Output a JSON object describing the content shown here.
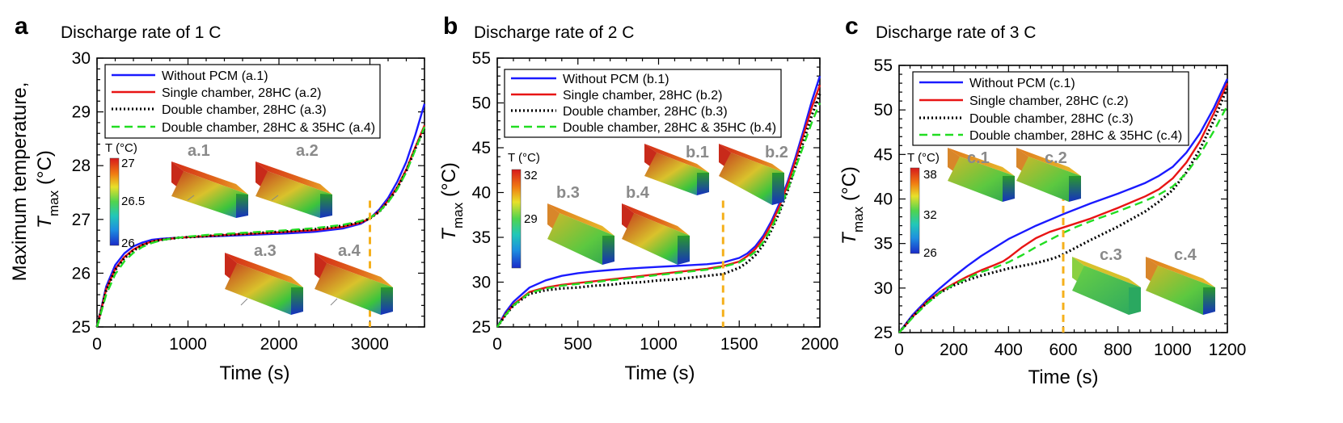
{
  "chart_data": [
    {
      "type": "line",
      "panel": "a",
      "title": "Discharge rate of 1 C",
      "xlabel": "Time (s)",
      "ylabel_text": "Maximum temperature,",
      "ylabel_symbol": "T",
      "ylabel_sub": "max",
      "ylabel_unit": "(°C)",
      "xlim": [
        0,
        3600
      ],
      "ylim": [
        25,
        30
      ],
      "xticks": [
        0,
        1000,
        2000,
        3000
      ],
      "xtick_labels": [
        "0",
        "1000",
        "2000",
        "3000"
      ],
      "yticks": [
        25,
        26,
        27,
        28,
        29,
        30
      ],
      "ytick_labels": [
        "25",
        "26",
        "27",
        "28",
        "29",
        "30"
      ],
      "marker_time": 3000,
      "series": [
        {
          "name": "Without PCM (a.1)",
          "color": "#1a1aff",
          "dash": "solid",
          "x": [
            0,
            100,
            200,
            300,
            400,
            500,
            600,
            700,
            800,
            900,
            1000,
            1200,
            1500,
            1800,
            2100,
            2400,
            2700,
            2900,
            3000,
            3100,
            3200,
            3300,
            3400,
            3500,
            3600
          ],
          "y": [
            25.0,
            25.75,
            26.15,
            26.37,
            26.5,
            26.57,
            26.62,
            26.64,
            26.65,
            26.66,
            26.67,
            26.68,
            26.7,
            26.72,
            26.74,
            26.77,
            26.83,
            26.92,
            27.02,
            27.18,
            27.4,
            27.7,
            28.07,
            28.58,
            29.15
          ]
        },
        {
          "name": "Single chamber, 28HC (a.2)",
          "color": "#e81414",
          "dash": "solid",
          "x": [
            0,
            100,
            200,
            300,
            400,
            500,
            600,
            700,
            800,
            900,
            1000,
            1200,
            1500,
            1800,
            2100,
            2400,
            2700,
            2900,
            3000,
            3100,
            3200,
            3300,
            3400,
            3500,
            3600
          ],
          "y": [
            25.0,
            25.7,
            26.08,
            26.3,
            26.44,
            26.53,
            26.59,
            26.62,
            26.64,
            26.66,
            26.67,
            26.69,
            26.72,
            26.74,
            26.77,
            26.8,
            26.86,
            26.94,
            27.02,
            27.15,
            27.35,
            27.6,
            27.93,
            28.35,
            28.75
          ]
        },
        {
          "name": "Double chamber, 28HC (a.3)",
          "color": "#000000",
          "dash": "dotted",
          "x": [
            0,
            100,
            200,
            300,
            400,
            500,
            600,
            700,
            800,
            900,
            1000,
            1200,
            1500,
            1800,
            2100,
            2400,
            2700,
            2900,
            3000,
            3100,
            3200,
            3300,
            3400,
            3500,
            3600
          ],
          "y": [
            25.0,
            25.68,
            26.06,
            26.28,
            26.42,
            26.52,
            26.58,
            26.62,
            26.64,
            26.66,
            26.67,
            26.69,
            26.72,
            26.75,
            26.78,
            26.82,
            26.88,
            26.95,
            27.02,
            27.14,
            27.33,
            27.58,
            27.9,
            28.32,
            28.7
          ]
        },
        {
          "name": "Double chamber, 28HC & 35HC (a.4)",
          "color": "#22dd22",
          "dash": "dashed",
          "x": [
            0,
            100,
            200,
            300,
            400,
            500,
            600,
            700,
            800,
            900,
            1000,
            1200,
            1500,
            1800,
            2100,
            2400,
            2700,
            2900,
            3000,
            3100,
            3200,
            3300,
            3400,
            3500,
            3600
          ],
          "y": [
            25.0,
            25.6,
            25.98,
            26.22,
            26.38,
            26.49,
            26.56,
            26.61,
            26.64,
            26.66,
            26.68,
            26.71,
            26.74,
            26.77,
            26.8,
            26.84,
            26.9,
            26.97,
            27.03,
            27.14,
            27.32,
            27.56,
            27.88,
            28.3,
            28.72
          ]
        }
      ],
      "colorbar": {
        "label": "T (°C)",
        "ticks": [
          "27",
          "26.5",
          "26"
        ]
      },
      "insets": [
        "a.1",
        "a.2",
        "a.3",
        "a.4"
      ]
    },
    {
      "type": "line",
      "panel": "b",
      "title": "Discharge rate of 2 C",
      "xlabel": "Time (s)",
      "ylabel_symbol": "T",
      "ylabel_sub": "max",
      "ylabel_unit": "(°C)",
      "xlim": [
        0,
        2000
      ],
      "ylim": [
        25,
        55
      ],
      "xticks": [
        0,
        500,
        1000,
        1500,
        2000
      ],
      "xtick_labels": [
        "0",
        "500",
        "1000",
        "1500",
        "2000"
      ],
      "yticks": [
        25,
        30,
        35,
        40,
        45,
        50,
        55
      ],
      "ytick_labels": [
        "25",
        "30",
        "35",
        "40",
        "45",
        "50",
        "55"
      ],
      "marker_time": 1400,
      "series": [
        {
          "name": "Without PCM (b.1)",
          "color": "#1a1aff",
          "dash": "solid",
          "x": [
            0,
            50,
            100,
            200,
            300,
            400,
            500,
            600,
            700,
            800,
            900,
            1000,
            1100,
            1200,
            1300,
            1400,
            1500,
            1550,
            1600,
            1650,
            1700,
            1750,
            1800,
            1850,
            1900,
            1950,
            2000
          ],
          "y": [
            25.0,
            26.6,
            27.8,
            29.4,
            30.2,
            30.7,
            31.0,
            31.2,
            31.35,
            31.5,
            31.6,
            31.7,
            31.8,
            31.9,
            32.0,
            32.2,
            32.7,
            33.2,
            34.0,
            35.2,
            36.8,
            38.8,
            41.2,
            44.0,
            47.0,
            50.2,
            53.0
          ]
        },
        {
          "name": "Single chamber, 28HC (b.2)",
          "color": "#e81414",
          "dash": "solid",
          "x": [
            0,
            50,
            100,
            200,
            300,
            400,
            500,
            600,
            700,
            800,
            900,
            1000,
            1100,
            1200,
            1300,
            1400,
            1500,
            1550,
            1600,
            1650,
            1700,
            1750,
            1800,
            1850,
            1900,
            1950,
            2000
          ],
          "y": [
            25.0,
            26.4,
            27.5,
            28.9,
            29.4,
            29.7,
            29.9,
            30.1,
            30.3,
            30.5,
            30.7,
            30.9,
            31.1,
            31.3,
            31.5,
            31.8,
            32.3,
            32.9,
            33.7,
            34.9,
            36.5,
            38.5,
            40.9,
            43.6,
            46.5,
            49.5,
            52.0
          ]
        },
        {
          "name": "Double chamber, 28HC (b.3)",
          "color": "#000000",
          "dash": "dotted",
          "x": [
            0,
            50,
            100,
            200,
            300,
            400,
            500,
            600,
            700,
            800,
            900,
            1000,
            1100,
            1200,
            1300,
            1400,
            1500,
            1550,
            1600,
            1650,
            1700,
            1750,
            1800,
            1850,
            1900,
            1950,
            2000
          ],
          "y": [
            25.0,
            26.3,
            27.4,
            28.7,
            29.1,
            29.3,
            29.4,
            29.6,
            29.7,
            29.9,
            30.0,
            30.2,
            30.3,
            30.5,
            30.7,
            30.9,
            31.6,
            32.2,
            33.0,
            34.2,
            35.8,
            37.8,
            40.2,
            42.9,
            45.8,
            48.6,
            51.0
          ]
        },
        {
          "name": "Double chamber, 28HC & 35HC (b.4)",
          "color": "#22dd22",
          "dash": "dashed",
          "x": [
            0,
            50,
            100,
            200,
            300,
            400,
            500,
            600,
            700,
            800,
            900,
            1000,
            1100,
            1200,
            1300,
            1400,
            1500,
            1550,
            1600,
            1650,
            1700,
            1750,
            1800,
            1850,
            1900,
            1950,
            2000
          ],
          "y": [
            25.0,
            26.3,
            27.4,
            28.8,
            29.3,
            29.6,
            29.8,
            30.0,
            30.2,
            30.4,
            30.6,
            30.8,
            31.0,
            31.2,
            31.4,
            31.7,
            32.2,
            32.7,
            33.4,
            34.5,
            36.0,
            38.0,
            40.3,
            42.8,
            45.3,
            47.8,
            50.0
          ]
        }
      ],
      "colorbar": {
        "label": "T (°C)",
        "ticks": [
          "32",
          "29"
        ]
      },
      "insets": [
        "b.1",
        "b.2",
        "b.3",
        "b.4"
      ]
    },
    {
      "type": "line",
      "panel": "c",
      "title": "Discharge rate of 3 C",
      "xlabel": "Time (s)",
      "ylabel_symbol": "T",
      "ylabel_sub": "max",
      "ylabel_unit": "(°C)",
      "xlim": [
        0,
        1200
      ],
      "ylim": [
        25,
        55
      ],
      "xticks": [
        0,
        200,
        400,
        600,
        800,
        1000,
        1200
      ],
      "xtick_labels": [
        "0",
        "200",
        "400",
        "600",
        "800",
        "1000",
        "1200"
      ],
      "yticks": [
        25,
        30,
        35,
        40,
        45,
        50,
        55
      ],
      "ytick_labels": [
        "25",
        "30",
        "35",
        "40",
        "45",
        "50",
        "55"
      ],
      "marker_time": 600,
      "series": [
        {
          "name": "Without PCM (c.1)",
          "color": "#1a1aff",
          "dash": "solid",
          "x": [
            0,
            50,
            100,
            150,
            200,
            250,
            300,
            400,
            500,
            600,
            700,
            800,
            900,
            950,
            1000,
            1050,
            1100,
            1150,
            1200
          ],
          "y": [
            25.0,
            27.0,
            28.6,
            30.0,
            31.3,
            32.5,
            33.6,
            35.5,
            37.0,
            38.3,
            39.5,
            40.6,
            41.8,
            42.6,
            43.6,
            45.2,
            47.4,
            50.2,
            53.5
          ]
        },
        {
          "name": "Single chamber, 28HC (c.2)",
          "color": "#e81414",
          "dash": "solid",
          "x": [
            0,
            50,
            100,
            150,
            200,
            250,
            300,
            350,
            380,
            400,
            450,
            500,
            550,
            600,
            650,
            700,
            800,
            900,
            950,
            1000,
            1050,
            1100,
            1150,
            1200
          ],
          "y": [
            25.0,
            26.8,
            28.4,
            29.6,
            30.5,
            31.3,
            32.0,
            32.6,
            33.0,
            33.4,
            34.6,
            35.6,
            36.3,
            36.8,
            37.3,
            37.8,
            39.0,
            40.3,
            41.1,
            42.3,
            44.1,
            46.5,
            49.6,
            53.0
          ]
        },
        {
          "name": "Double chamber, 28HC (c.3)",
          "color": "#000000",
          "dash": "dotted",
          "x": [
            0,
            50,
            100,
            150,
            200,
            250,
            300,
            350,
            400,
            450,
            500,
            550,
            580,
            600,
            650,
            700,
            800,
            900,
            950,
            1000,
            1050,
            1100,
            1150,
            1200
          ],
          "y": [
            25.0,
            26.8,
            28.3,
            29.5,
            30.3,
            30.9,
            31.4,
            31.8,
            32.2,
            32.5,
            32.8,
            33.2,
            33.5,
            33.8,
            34.6,
            35.4,
            36.9,
            38.6,
            39.7,
            41.0,
            43.0,
            45.6,
            48.8,
            52.5
          ]
        },
        {
          "name": "Double chamber, 28HC & 35HC (c.4)",
          "color": "#22dd22",
          "dash": "dashed",
          "x": [
            0,
            50,
            100,
            150,
            200,
            250,
            300,
            350,
            400,
            450,
            500,
            550,
            600,
            650,
            700,
            800,
            900,
            950,
            1000,
            1050,
            1100,
            1150,
            1200
          ],
          "y": [
            25.0,
            26.7,
            28.2,
            29.5,
            30.4,
            31.1,
            31.8,
            32.3,
            32.9,
            33.7,
            34.6,
            35.4,
            36.2,
            36.9,
            37.5,
            38.6,
            39.8,
            40.5,
            41.4,
            42.9,
            45.0,
            47.6,
            50.5
          ]
        }
      ],
      "colorbar": {
        "label": "T (°C)",
        "ticks": [
          "38",
          "32",
          "26"
        ]
      },
      "insets": [
        "c.1",
        "c.2",
        "c.3",
        "c.4"
      ]
    }
  ]
}
